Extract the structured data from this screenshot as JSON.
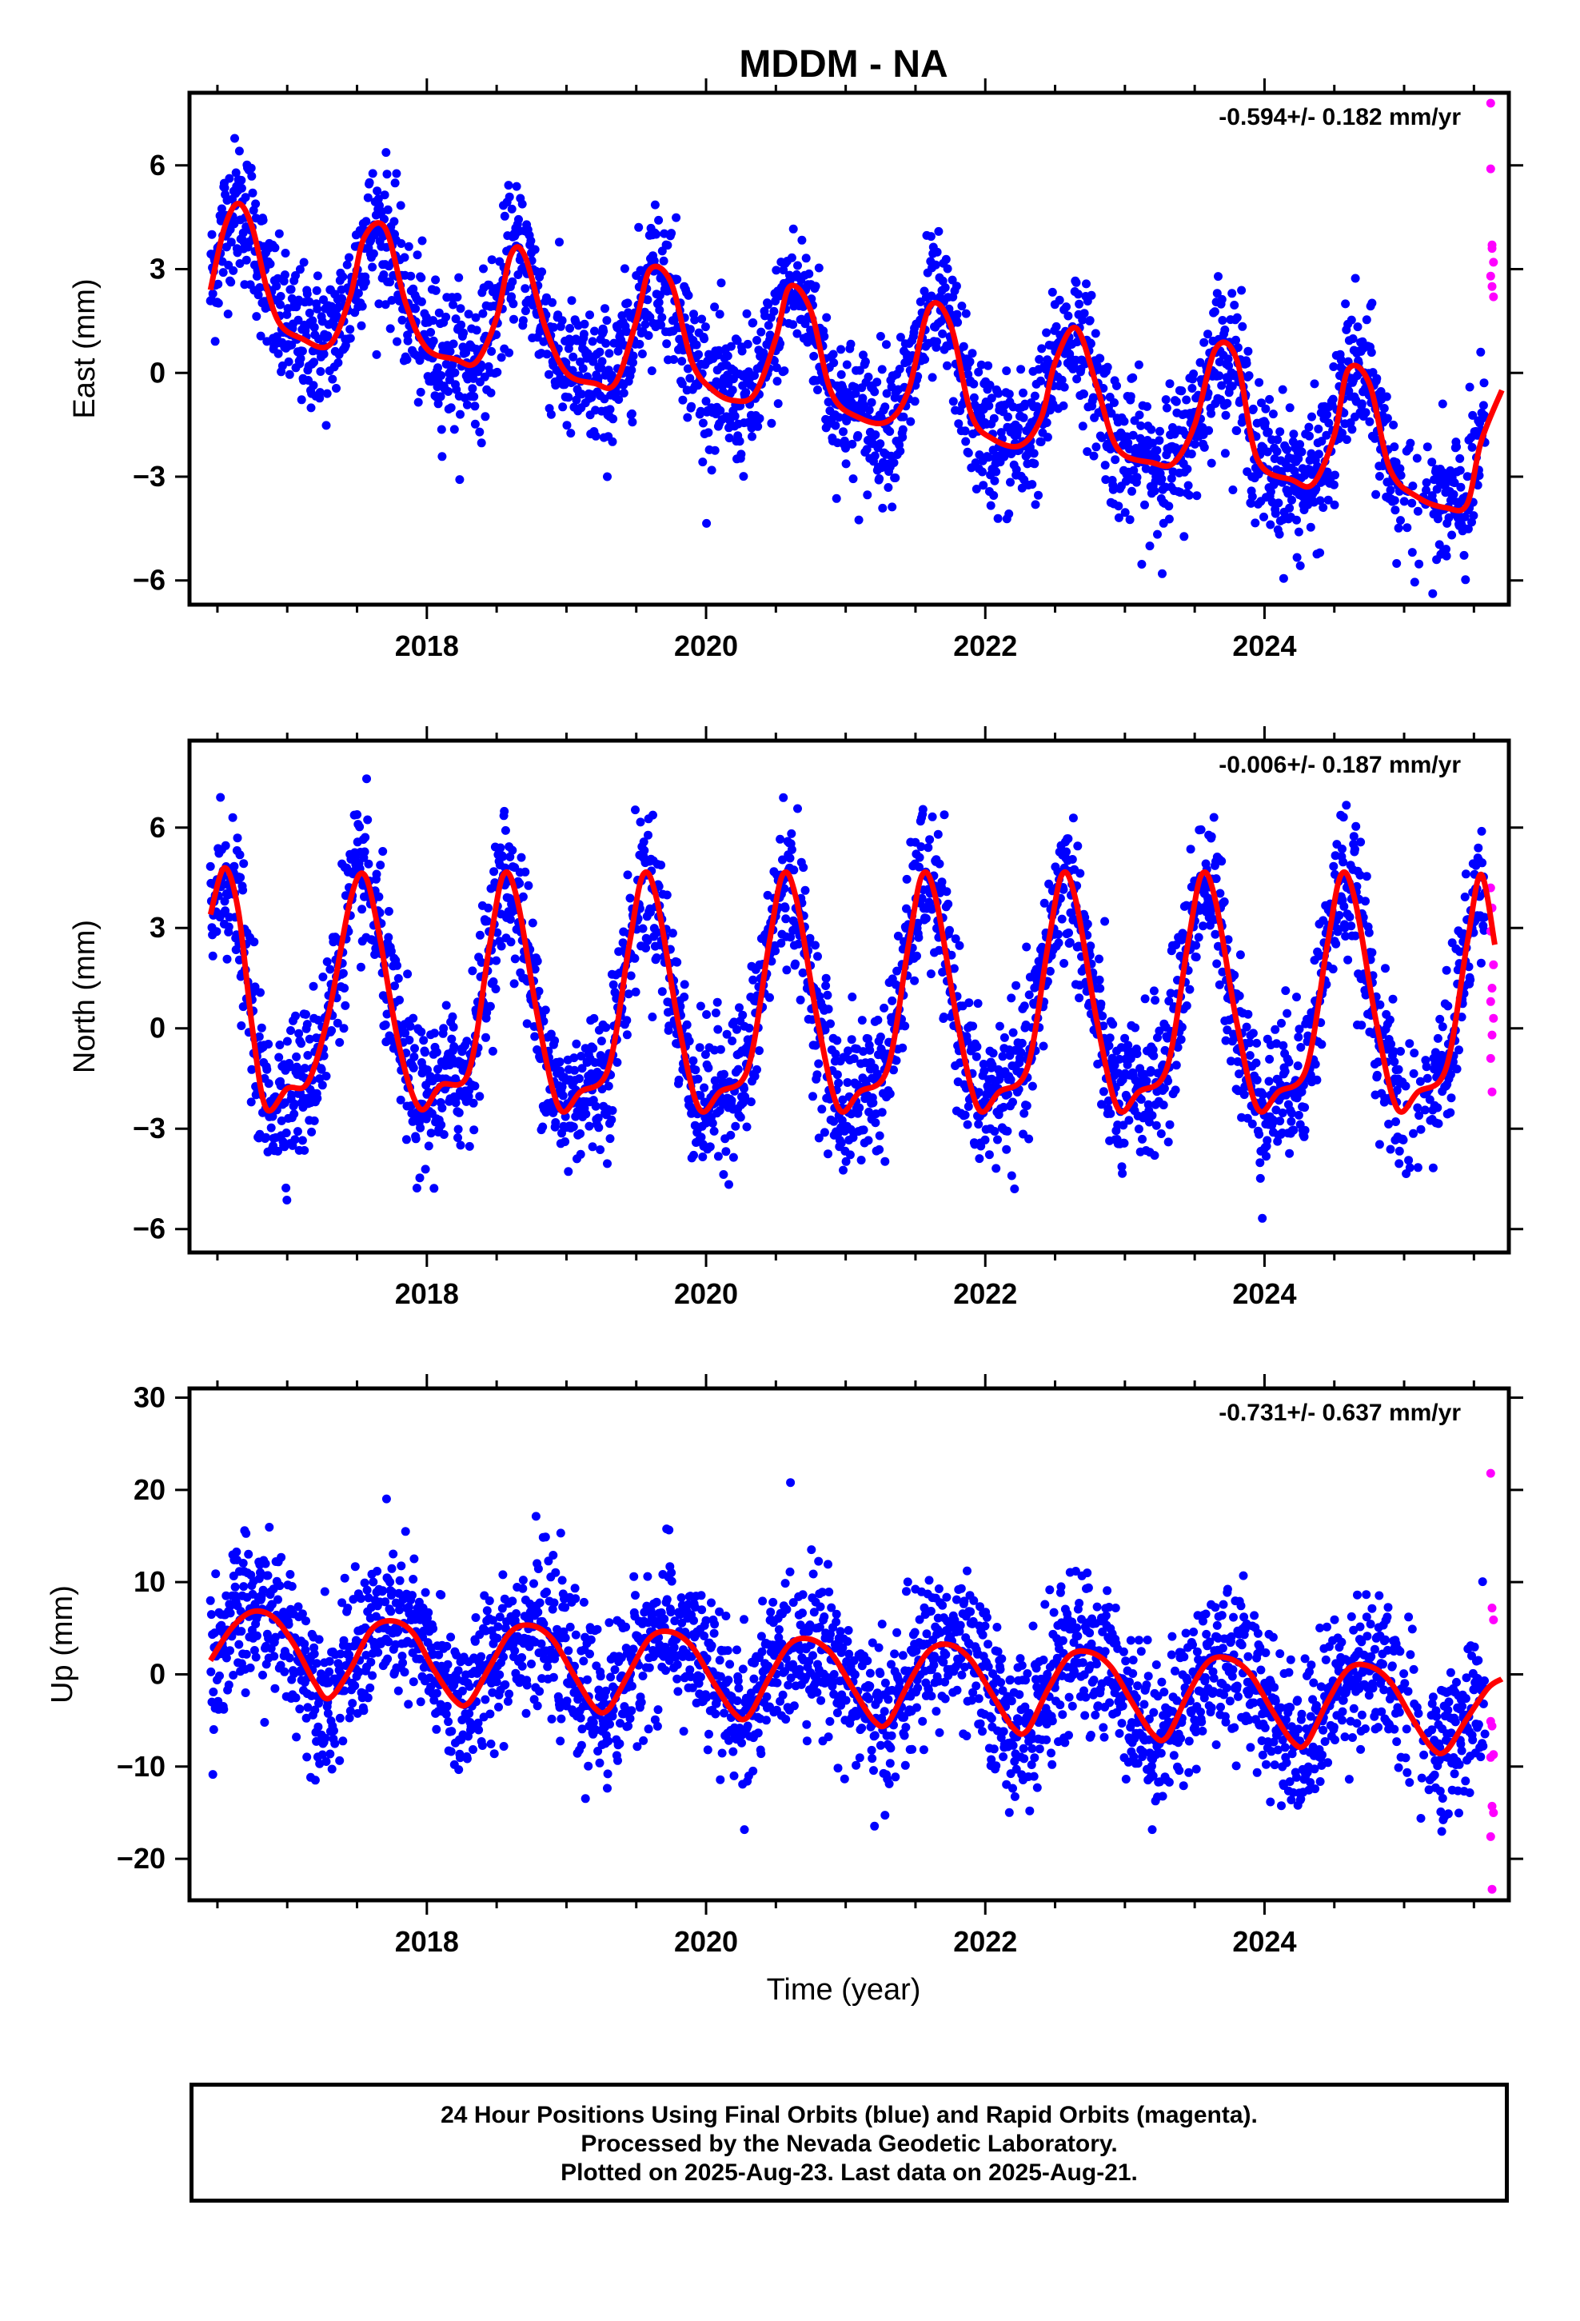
{
  "title": "MDDM - NA",
  "xlabel": "Time (year)",
  "footer": {
    "line1": "24 Hour Positions Using Final Orbits (blue) and Rapid Orbits (magenta).",
    "line2": "Processed by the Nevada Geodetic Laboratory.",
    "line3": "Plotted on 2025-Aug-23. Last data on 2025-Aug-21."
  },
  "colors": {
    "final": "#0000ff",
    "rapid": "#ff00ff",
    "model": "#ff0000",
    "frame": "#000000"
  },
  "chart_data": [
    {
      "type": "scatter",
      "ylabel": "East (mm)",
      "rate": "-0.594+/- 0.182 mm/yr",
      "xlim": [
        2016.3,
        2025.75
      ],
      "ylim": [
        -6.7,
        8.1
      ],
      "xticks": [
        2018,
        2020,
        2022,
        2024
      ],
      "yticks": [
        -6,
        -3,
        0,
        3,
        6
      ],
      "model": {
        "description_free": true,
        "x": [
          2016.45,
          2016.55,
          2016.65,
          2016.75,
          2016.85,
          2016.95,
          2017.1,
          2017.3,
          2017.45,
          2017.55,
          2017.7,
          2017.85,
          2018.0,
          2018.2,
          2018.35,
          2018.5,
          2018.6,
          2018.7,
          2018.85,
          2019.0,
          2019.2,
          2019.35,
          2019.5,
          2019.6,
          2019.75,
          2019.9,
          2020.05,
          2020.2,
          2020.35,
          2020.5,
          2020.6,
          2020.75,
          2020.9,
          2021.1,
          2021.3,
          2021.45,
          2021.6,
          2021.75,
          2021.9,
          2022.05,
          2022.25,
          2022.4,
          2022.5,
          2022.65,
          2022.8,
          2022.95,
          2023.2,
          2023.35,
          2023.5,
          2023.65,
          2023.8,
          2023.95,
          2024.2,
          2024.35,
          2024.5,
          2024.6,
          2024.75,
          2024.9,
          2025.1,
          2025.3,
          2025.45,
          2025.55,
          2025.7
        ],
        "y": [
          2.4,
          4.2,
          4.9,
          4.2,
          2.5,
          1.4,
          1.0,
          0.8,
          2.2,
          3.9,
          4.2,
          2.0,
          0.7,
          0.4,
          0.3,
          1.6,
          3.4,
          3.4,
          1.3,
          0.0,
          -0.3,
          -0.3,
          1.5,
          3.0,
          2.6,
          0.3,
          -0.5,
          -0.8,
          -0.6,
          1.0,
          2.5,
          1.8,
          -0.6,
          -1.3,
          -1.4,
          -0.5,
          1.9,
          1.4,
          -1.2,
          -1.9,
          -2.1,
          -1.3,
          0.3,
          1.3,
          -0.4,
          -2.2,
          -2.6,
          -2.6,
          -1.5,
          0.7,
          0.4,
          -2.5,
          -3.1,
          -3.2,
          -1.8,
          0.1,
          -0.3,
          -2.8,
          -3.6,
          -3.9,
          -3.8,
          -2.0,
          -0.5
        ]
      },
      "rapid": {
        "x": [
          2025.62,
          2025.62,
          2025.63,
          2025.63,
          2025.64,
          2025.62,
          2025.63,
          2025.64
        ],
        "y": [
          7.8,
          5.9,
          3.7,
          3.6,
          3.2,
          2.8,
          2.5,
          2.2
        ]
      }
    },
    {
      "type": "scatter",
      "ylabel": "North (mm)",
      "rate": "-0.006+/- 0.187 mm/yr",
      "xlim": [
        2016.3,
        2025.75
      ],
      "ylim": [
        -6.7,
        8.6
      ],
      "xticks": [
        2018,
        2020,
        2022,
        2024
      ],
      "yticks": [
        -6,
        -3,
        0,
        3,
        6
      ],
      "model": {
        "x": [
          2016.45,
          2016.55,
          2016.65,
          2016.75,
          2016.85,
          2017.0,
          2017.15,
          2017.3,
          2017.45,
          2017.55,
          2017.65,
          2017.8,
          2017.95,
          2018.1,
          2018.3,
          2018.45,
          2018.55,
          2018.65,
          2018.8,
          2018.95,
          2019.1,
          2019.3,
          2019.45,
          2019.55,
          2019.65,
          2019.8,
          2019.95,
          2020.1,
          2020.3,
          2020.45,
          2020.55,
          2020.65,
          2020.8,
          2020.95,
          2021.1,
          2021.3,
          2021.45,
          2021.55,
          2021.65,
          2021.8,
          2021.95,
          2022.1,
          2022.3,
          2022.45,
          2022.55,
          2022.65,
          2022.8,
          2022.95,
          2023.1,
          2023.3,
          2023.45,
          2023.55,
          2023.65,
          2023.8,
          2023.95,
          2024.1,
          2024.3,
          2024.45,
          2024.55,
          2024.65,
          2024.8,
          2024.95,
          2025.1,
          2025.3,
          2025.45,
          2025.55,
          2025.65
        ],
        "y": [
          3.4,
          4.8,
          3.5,
          0.0,
          -2.4,
          -1.8,
          -1.6,
          0.5,
          3.8,
          4.6,
          3.0,
          -0.5,
          -2.4,
          -1.7,
          -1.3,
          2.5,
          4.6,
          3.8,
          0.2,
          -2.4,
          -1.9,
          -1.2,
          2.5,
          4.6,
          3.8,
          0.2,
          -2.4,
          -1.9,
          -1.2,
          2.5,
          4.6,
          3.8,
          0.2,
          -2.4,
          -1.9,
          -1.2,
          2.5,
          4.6,
          3.8,
          0.2,
          -2.4,
          -1.9,
          -1.2,
          2.5,
          4.6,
          3.8,
          0.2,
          -2.4,
          -1.9,
          -1.2,
          2.5,
          4.6,
          3.8,
          0.2,
          -2.4,
          -1.9,
          -1.2,
          2.5,
          4.6,
          3.8,
          0.2,
          -2.4,
          -1.9,
          -1.2,
          2.5,
          4.6,
          2.5
        ]
      },
      "rapid": {
        "x": [
          2025.62,
          2025.63,
          2025.62,
          2025.64,
          2025.63,
          2025.62,
          2025.64,
          2025.63,
          2025.62,
          2025.63
        ],
        "y": [
          4.2,
          3.6,
          2.9,
          1.9,
          1.2,
          0.8,
          0.3,
          -0.2,
          -0.9,
          -1.9
        ]
      }
    },
    {
      "type": "scatter",
      "ylabel": "Up (mm)",
      "rate": "-0.731+/- 0.637 mm/yr",
      "xlim": [
        2016.3,
        2025.75
      ],
      "ylim": [
        -24.5,
        31.0
      ],
      "xticks": [
        2018,
        2020,
        2022,
        2024
      ],
      "yticks": [
        -20,
        -10,
        0,
        10,
        20,
        30
      ],
      "model": {
        "x": [
          2016.45,
          2016.6,
          2016.75,
          2016.9,
          2017.05,
          2017.2,
          2017.3,
          2017.45,
          2017.6,
          2017.75,
          2017.9,
          2018.05,
          2018.2,
          2018.3,
          2018.45,
          2018.6,
          2018.75,
          2018.9,
          2019.05,
          2019.2,
          2019.3,
          2019.45,
          2019.6,
          2019.75,
          2019.9,
          2020.05,
          2020.2,
          2020.3,
          2020.45,
          2020.6,
          2020.75,
          2020.9,
          2021.05,
          2021.2,
          2021.3,
          2021.45,
          2021.6,
          2021.75,
          2021.9,
          2022.05,
          2022.2,
          2022.3,
          2022.45,
          2022.6,
          2022.75,
          2022.9,
          2023.05,
          2023.2,
          2023.3,
          2023.45,
          2023.6,
          2023.75,
          2023.9,
          2024.05,
          2024.2,
          2024.3,
          2024.45,
          2024.6,
          2024.75,
          2024.9,
          2025.05,
          2025.2,
          2025.3,
          2025.45,
          2025.6,
          2025.7
        ],
        "y": [
          1.5,
          5.0,
          6.8,
          6.2,
          3.2,
          -1.0,
          -2.6,
          0.5,
          4.8,
          5.8,
          4.5,
          0.5,
          -2.8,
          -3.1,
          0.8,
          4.6,
          5.3,
          3.8,
          0.0,
          -3.6,
          -3.8,
          0.2,
          4.0,
          4.6,
          3.0,
          -0.8,
          -4.2,
          -4.6,
          -0.4,
          3.3,
          3.8,
          2.2,
          -1.5,
          -5.0,
          -5.3,
          -1.0,
          2.6,
          3.2,
          1.5,
          -2.2,
          -5.8,
          -6.1,
          -1.6,
          2.0,
          2.4,
          0.8,
          -3.0,
          -6.5,
          -6.8,
          -2.2,
          1.4,
          1.7,
          0.0,
          -3.8,
          -7.3,
          -7.5,
          -3.0,
          0.6,
          0.9,
          -0.8,
          -4.6,
          -8.0,
          -8.3,
          -4.8,
          -1.5,
          -0.5
        ]
      },
      "rapid": {
        "x": [
          2025.62,
          2025.63,
          2025.64,
          2025.62,
          2025.63,
          2025.64,
          2025.62,
          2025.63,
          2025.64,
          2025.62,
          2025.63
        ],
        "y": [
          21.8,
          7.2,
          5.9,
          -5.1,
          -5.6,
          -8.7,
          -9.0,
          -14.3,
          -15.0,
          -17.6,
          -23.3
        ]
      }
    }
  ]
}
